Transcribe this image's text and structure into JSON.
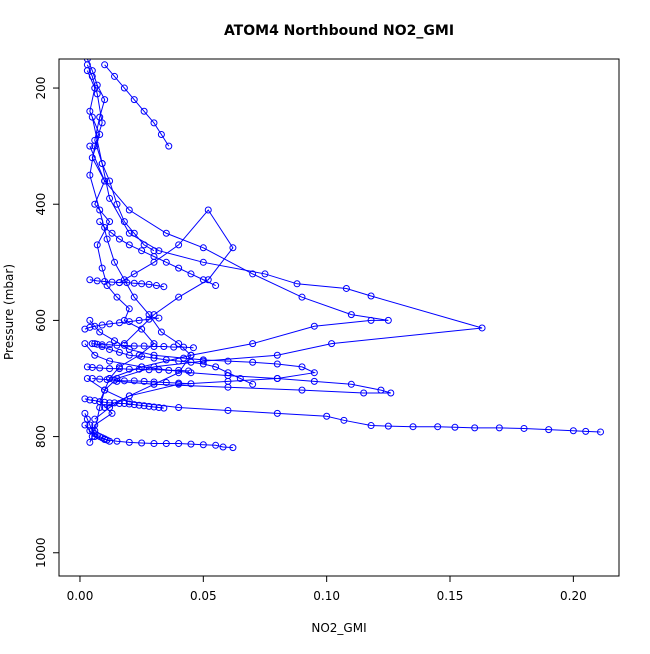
{
  "chart_data": {
    "type": "line",
    "title": "ATOM4 Northbound NO2_GMI",
    "xlabel": "NO2_GMI",
    "ylabel": "Pressure (mbar)",
    "xlim": [
      -0.0085,
      0.2185
    ],
    "ylim": [
      1040,
      150
    ],
    "y_reversed": true,
    "grid": false,
    "legend": "none",
    "x_ticks": [
      0.0,
      0.05,
      0.1,
      0.15,
      0.2
    ],
    "x_tick_labels": [
      "0.00",
      "0.05",
      "0.10",
      "0.15",
      "0.20"
    ],
    "y_ticks": [
      200,
      400,
      600,
      800,
      1000
    ],
    "y_tick_labels": [
      "200",
      "400",
      "600",
      "800",
      "1000"
    ],
    "series_color": "#0000ff",
    "marker": "open-circle",
    "series": [
      {
        "x": [
          0.003,
          0.006,
          0.004,
          0.008,
          0.005,
          0.01,
          0.006,
          0.012,
          0.007,
          0.009,
          0.011,
          0.015,
          0.02,
          0.018,
          0.025,
          0.03,
          0.024,
          0.016,
          0.012,
          0.01,
          0.008,
          0.013,
          0.006,
          0.005,
          0.004
        ],
        "y": [
          170,
          200,
          240,
          280,
          320,
          360,
          400,
          430,
          470,
          510,
          540,
          560,
          580,
          600,
          615,
          640,
          660,
          680,
          700,
          720,
          740,
          760,
          780,
          800,
          810
        ]
      },
      {
        "x": [
          0.005,
          0.009,
          0.012,
          0.02,
          0.032,
          0.05,
          0.075,
          0.088,
          0.108,
          0.118,
          0.163,
          0.102,
          0.08,
          0.05,
          0.03,
          0.015,
          0.01,
          0.008,
          0.006
        ],
        "y": [
          250,
          330,
          390,
          450,
          480,
          500,
          520,
          537,
          545,
          558,
          613,
          640,
          660,
          670,
          680,
          700,
          720,
          750,
          790
        ]
      },
      {
        "x": [
          0.004,
          0.01,
          0.02,
          0.035,
          0.05,
          0.07,
          0.09,
          0.11,
          0.125,
          0.118,
          0.095,
          0.07,
          0.045,
          0.025,
          0.012
        ],
        "y": [
          300,
          360,
          410,
          450,
          475,
          520,
          560,
          590,
          600,
          600,
          610,
          640,
          660,
          680,
          700
        ]
      },
      {
        "x": [
          0.002,
          0.006,
          0.012,
          0.025,
          0.045,
          0.06,
          0.08,
          0.095,
          0.11,
          0.122,
          0.126,
          0.115,
          0.09,
          0.06,
          0.03,
          0.015
        ],
        "y": [
          640,
          660,
          670,
          680,
          690,
          695,
          700,
          705,
          710,
          720,
          725,
          725,
          720,
          715,
          710,
          705
        ]
      },
      {
        "x": [
          0.003,
          0.01,
          0.02,
          0.04,
          0.06,
          0.08,
          0.1,
          0.107,
          0.118,
          0.125,
          0.135,
          0.145,
          0.152,
          0.16,
          0.17,
          0.18,
          0.19,
          0.2,
          0.205,
          0.211
        ],
        "y": [
          700,
          720,
          740,
          750,
          755,
          760,
          765,
          772,
          781,
          782,
          783,
          783,
          784,
          785,
          785,
          786,
          788,
          790,
          791,
          792
        ]
      },
      {
        "x": [
          0.002,
          0.004,
          0.006,
          0.01,
          0.015,
          0.02,
          0.025,
          0.03,
          0.035,
          0.04,
          0.045,
          0.05,
          0.055,
          0.058,
          0.062
        ],
        "y": [
          780,
          790,
          800,
          805,
          808,
          810,
          811,
          812,
          812,
          812,
          813,
          814,
          815,
          818,
          819
        ]
      },
      {
        "x": [
          0.004,
          0.008,
          0.014,
          0.02,
          0.03,
          0.042,
          0.05,
          0.06,
          0.07,
          0.08,
          0.09,
          0.095,
          0.08,
          0.06,
          0.04,
          0.02,
          0.01
        ],
        "y": [
          600,
          620,
          635,
          650,
          660,
          665,
          668,
          670,
          672,
          675,
          680,
          690,
          700,
          705,
          710,
          730,
          750
        ]
      },
      {
        "x": [
          0.003,
          0.005,
          0.007,
          0.009,
          0.006,
          0.004,
          0.008,
          0.011,
          0.014,
          0.018,
          0.022,
          0.028,
          0.033,
          0.04,
          0.045,
          0.04,
          0.03,
          0.02,
          0.012,
          0.006
        ],
        "y": [
          160,
          180,
          210,
          260,
          300,
          350,
          410,
          460,
          500,
          530,
          560,
          590,
          620,
          640,
          660,
          690,
          710,
          730,
          750,
          770
        ]
      },
      {
        "x": [
          0.016,
          0.022,
          0.03,
          0.04,
          0.052,
          0.062,
          0.052,
          0.04,
          0.03,
          0.018
        ],
        "y": [
          535,
          520,
          500,
          470,
          410,
          475,
          530,
          560,
          590,
          640
        ]
      },
      {
        "x": [
          0.006,
          0.009,
          0.012,
          0.016,
          0.02,
          0.025,
          0.03,
          0.035,
          0.04,
          0.045,
          0.05,
          0.055,
          0.06,
          0.065,
          0.07
        ],
        "y": [
          640,
          645,
          650,
          655,
          660,
          662,
          665,
          668,
          670,
          672,
          675,
          680,
          690,
          700,
          710
        ]
      },
      {
        "x": [
          0.002,
          0.004,
          0.006,
          0.008,
          0.01,
          0.012,
          0.014,
          0.016,
          0.018,
          0.02,
          0.022,
          0.024,
          0.026,
          0.028,
          0.03,
          0.032,
          0.034
        ],
        "y": [
          735,
          737,
          738,
          740,
          741,
          742,
          742,
          743,
          743,
          744,
          745,
          746,
          747,
          748,
          749,
          750,
          751
        ]
      },
      {
        "x": [
          0.005,
          0.007,
          0.009,
          0.012,
          0.015,
          0.018,
          0.022,
          0.026,
          0.03,
          0.034,
          0.038,
          0.042,
          0.046
        ],
        "y": [
          640,
          641,
          642,
          642,
          643,
          643,
          644,
          644,
          645,
          645,
          646,
          646,
          647
        ]
      },
      {
        "x": [
          0.003,
          0.005,
          0.008,
          0.012,
          0.016,
          0.02,
          0.024,
          0.028,
          0.032,
          0.036,
          0.04,
          0.044
        ],
        "y": [
          680,
          681,
          682,
          683,
          683,
          684,
          684,
          685,
          685,
          686,
          686,
          687
        ]
      },
      {
        "x": [
          0.004,
          0.007,
          0.01,
          0.013,
          0.016,
          0.019,
          0.022,
          0.025,
          0.028,
          0.031,
          0.034
        ],
        "y": [
          530,
          532,
          533,
          534,
          535,
          535,
          536,
          537,
          538,
          540,
          542
        ]
      },
      {
        "x": [
          0.005,
          0.008,
          0.011,
          0.014,
          0.018,
          0.022,
          0.026,
          0.03,
          0.035,
          0.04,
          0.045
        ],
        "y": [
          700,
          701,
          702,
          703,
          704,
          704,
          705,
          706,
          707,
          708,
          709
        ]
      },
      {
        "x": [
          0.002,
          0.004,
          0.006,
          0.009,
          0.012,
          0.016,
          0.02,
          0.024,
          0.028,
          0.032
        ],
        "y": [
          615,
          612,
          610,
          608,
          606,
          604,
          602,
          600,
          598,
          596
        ]
      },
      {
        "x": [
          0.003,
          0.005,
          0.007,
          0.01,
          0.008,
          0.006,
          0.009,
          0.012,
          0.015,
          0.018,
          0.022,
          0.026,
          0.03
        ],
        "y": [
          150,
          170,
          195,
          220,
          250,
          290,
          330,
          360,
          400,
          430,
          450,
          470,
          480
        ]
      },
      {
        "x": [
          0.01,
          0.014,
          0.018,
          0.022,
          0.026,
          0.03,
          0.033,
          0.036
        ],
        "y": [
          160,
          180,
          200,
          220,
          240,
          260,
          280,
          300
        ]
      },
      {
        "x": [
          0.008,
          0.01,
          0.013,
          0.016,
          0.02,
          0.025,
          0.03,
          0.035,
          0.04,
          0.045,
          0.05,
          0.055
        ],
        "y": [
          430,
          440,
          450,
          460,
          470,
          480,
          490,
          500,
          510,
          520,
          530,
          540
        ]
      },
      {
        "x": [
          0.002,
          0.003,
          0.004,
          0.005,
          0.006,
          0.007,
          0.008,
          0.009,
          0.01,
          0.011,
          0.012
        ],
        "y": [
          760,
          770,
          780,
          790,
          795,
          798,
          800,
          802,
          804,
          806,
          808
        ]
      }
    ]
  }
}
